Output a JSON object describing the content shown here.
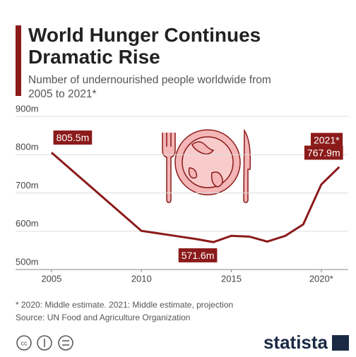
{
  "chart_data": {
    "type": "line",
    "title": "World Hunger Continues Dramatic Rise",
    "subtitle": "Number of undernourished people worldwide from 2005 to 2021*",
    "x": [
      2005,
      2010,
      2011,
      2012,
      2013,
      2014,
      2015,
      2016,
      2017,
      2018,
      2019,
      2020,
      2021
    ],
    "series": [
      {
        "name": "Undernourished people",
        "color": "#8b1a1a",
        "values": [
          805.5,
          601,
          594,
          587,
          580,
          571.6,
          588,
          586,
          573,
          588,
          618,
          722,
          767.9
        ],
        "value_labels": [
          "805.5m",
          null,
          null,
          null,
          null,
          "571.6m",
          null,
          null,
          null,
          null,
          null,
          null,
          "767.9m"
        ]
      }
    ],
    "annotation": "2021*",
    "xlim": [
      2003,
      2021.5
    ],
    "xticks": [
      2005,
      2010,
      2015,
      {
        "value": 2020,
        "label": "2020*"
      }
    ],
    "ylim": [
      500,
      900
    ],
    "yticks": [
      {
        "value": 500,
        "label": "500m"
      },
      {
        "value": 600,
        "label": "600m"
      },
      {
        "value": 700,
        "label": "700m"
      },
      {
        "value": 800,
        "label": "800m"
      },
      {
        "value": 900,
        "label": "900m"
      }
    ],
    "grid": true,
    "footnote": "* 2020: Middle estimate. 2021: Middle estimate, projection",
    "source": "Source: UN Food and Agriculture Organization",
    "brand": "statista"
  }
}
